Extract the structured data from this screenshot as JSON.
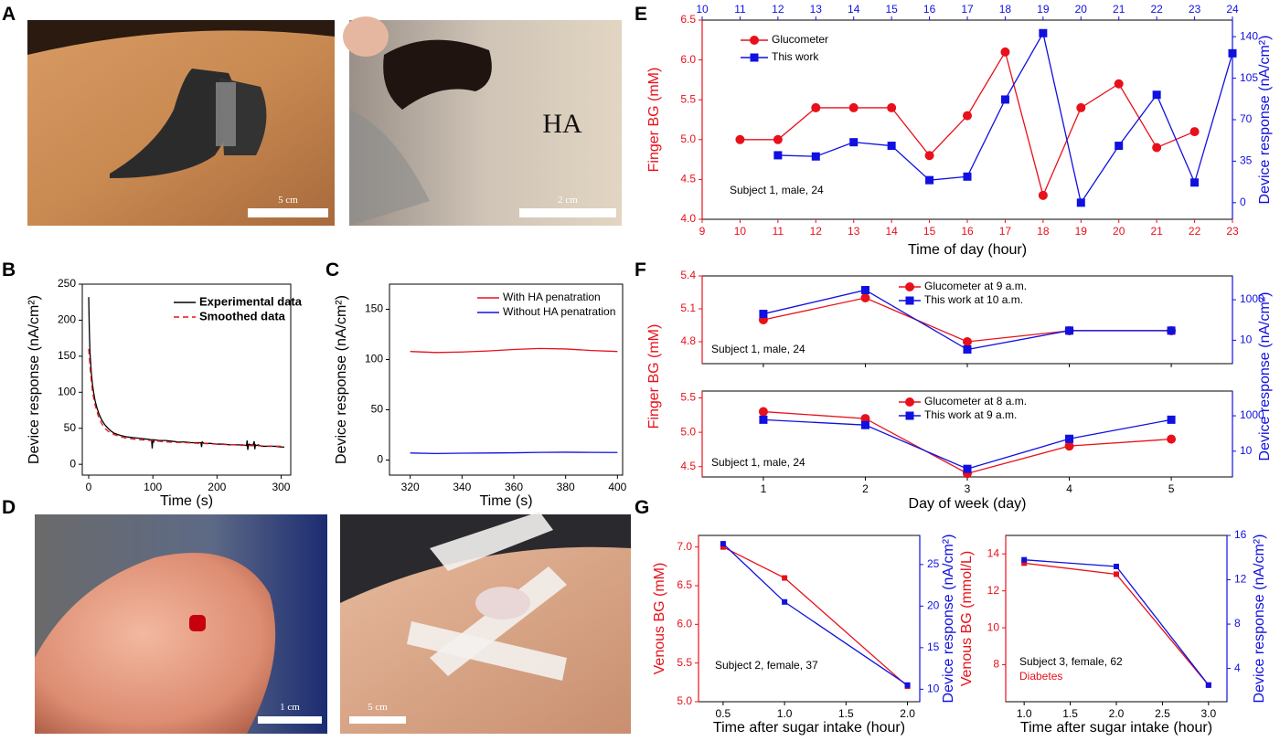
{
  "panels": {
    "A": "A",
    "B": "B",
    "C": "C",
    "D": "D",
    "E": "E",
    "F": "F",
    "G": "G"
  },
  "photos": {
    "a_left_scale": "5 cm",
    "a_right_scale": "2 cm",
    "a_right_label": "HA",
    "d_left_scale": "1 cm",
    "d_right_scale": "5 cm"
  },
  "colors": {
    "red": "#e8101a",
    "blue": "#1010e0",
    "black": "#000000"
  },
  "chart_data": [
    {
      "id": "B",
      "type": "line",
      "xlabel": "Time (s)",
      "ylabel": "Device response (nA/cm²)",
      "xlim": [
        -10,
        315
      ],
      "ylim": [
        -15,
        250
      ],
      "xticks": [
        0,
        100,
        200,
        300
      ],
      "yticks": [
        0,
        50,
        100,
        150,
        200,
        250
      ],
      "legend_position": "top-right",
      "series": [
        {
          "name": "Experimental data",
          "color": "#000000",
          "style": "solid",
          "x": [
            0,
            1,
            2,
            4,
            6,
            8,
            10,
            13,
            16,
            20,
            25,
            30,
            35,
            40,
            50,
            60,
            70,
            80,
            90,
            98,
            99,
            100,
            101,
            102,
            110,
            120,
            130,
            140,
            150,
            160,
            170,
            175,
            176,
            177,
            180,
            190,
            200,
            210,
            220,
            230,
            240,
            246,
            247,
            248,
            249,
            250,
            252,
            254,
            256,
            258,
            259,
            260,
            262,
            264,
            270,
            280,
            290,
            300,
            305
          ],
          "y": [
            232,
            185,
            155,
            128,
            110,
            98,
            88,
            78,
            70,
            62,
            55,
            50,
            46,
            43,
            40,
            38,
            37,
            36,
            35,
            34,
            22,
            35,
            30,
            34,
            33,
            33,
            32,
            31,
            31,
            30,
            30,
            30,
            24,
            31,
            29,
            29,
            28,
            28,
            27,
            27,
            27,
            26,
            33,
            20,
            27,
            28,
            27,
            27,
            26,
            32,
            21,
            27,
            26,
            27,
            25,
            25,
            25,
            24,
            24
          ]
        },
        {
          "name": "Smoothed data",
          "color": "#e8101a",
          "style": "dashed",
          "x": [
            0,
            3,
            6,
            10,
            15,
            20,
            25,
            30,
            40,
            50,
            60,
            80,
            100,
            120,
            150,
            200,
            250,
            300
          ],
          "y": [
            160,
            125,
            100,
            82,
            67,
            57,
            50,
            46,
            41,
            38,
            36,
            34,
            33,
            31,
            30,
            28,
            26,
            25
          ]
        }
      ]
    },
    {
      "id": "C",
      "type": "line",
      "xlabel": "Time (s)",
      "ylabel": "Device response (nA/cm²)",
      "xlim": [
        312,
        402
      ],
      "ylim": [
        -15,
        175
      ],
      "xticks": [
        320,
        340,
        360,
        380,
        400
      ],
      "yticks": [
        0,
        50,
        100,
        150
      ],
      "legend_position": "top-right",
      "series": [
        {
          "name": "With HA penatration",
          "color": "#e8101a",
          "x": [
            320,
            330,
            340,
            350,
            360,
            370,
            380,
            390,
            400
          ],
          "y": [
            108,
            107,
            107.5,
            108.5,
            110,
            111,
            110.5,
            109,
            108
          ]
        },
        {
          "name": "Without HA penatration",
          "color": "#1010e0",
          "x": [
            320,
            330,
            340,
            350,
            360,
            370,
            380,
            390,
            400
          ],
          "y": [
            7,
            6.5,
            6.8,
            7,
            7.2,
            7.6,
            7.8,
            7.6,
            7.5
          ]
        }
      ]
    },
    {
      "id": "E",
      "type": "line",
      "xlabel": "Time of day (hour)",
      "ylabel": "Finger BG (mM)",
      "y2label": "Device response (nA/cm²)",
      "xlim": [
        9,
        23
      ],
      "x2lim": [
        10,
        24
      ],
      "ylim": [
        4.0,
        6.5
      ],
      "y2lim": [
        -14,
        154
      ],
      "xticks": [
        9,
        10,
        11,
        12,
        13,
        14,
        15,
        16,
        17,
        18,
        19,
        20,
        21,
        22,
        23
      ],
      "x2ticks": [
        10,
        11,
        12,
        13,
        14,
        15,
        16,
        17,
        18,
        19,
        20,
        21,
        22,
        23,
        24
      ],
      "yticks": [
        "4.0",
        "4.5",
        "5.0",
        "5.5",
        "6.0",
        "6.5"
      ],
      "y2ticks": [
        0,
        35,
        70,
        105,
        140
      ],
      "annotation": "Subject 1, male, 24",
      "legend_position": "top-left",
      "series": [
        {
          "name": "Glucometer",
          "color": "#e8101a",
          "marker": "circle",
          "axis": "left",
          "x": [
            10,
            11,
            12,
            13,
            14,
            15,
            16,
            17,
            18,
            19,
            20,
            21,
            22
          ],
          "y": [
            5.0,
            5.0,
            5.4,
            5.4,
            5.4,
            4.8,
            5.3,
            6.1,
            4.3,
            5.4,
            5.7,
            4.9,
            5.1
          ]
        },
        {
          "name": "This work",
          "color": "#1010e0",
          "marker": "square",
          "axis": "right",
          "x": [
            11,
            12,
            13,
            14,
            15,
            16,
            17,
            18,
            19,
            20,
            21,
            22,
            23
          ],
          "y": [
            40,
            39,
            51,
            48,
            19,
            22,
            87,
            143,
            0,
            48,
            91,
            17,
            126
          ]
        }
      ]
    },
    {
      "id": "F1",
      "type": "line",
      "ylabel": "Finger BG (mM)",
      "y2label": "Device response (nA/cm²)",
      "xlim": [
        0.4,
        5.6
      ],
      "ylim": [
        4.6,
        5.4
      ],
      "y2scale": "log",
      "y2lim": [
        0.7,
        15000
      ],
      "yticks": [
        "4.8",
        "5.1",
        "5.4"
      ],
      "y2ticks": [
        10,
        1000
      ],
      "annotation": "Subject 1, male, 24",
      "legend_position": "top-center",
      "series": [
        {
          "name": "Glucometer at 9 a.m.",
          "color": "#e8101a",
          "marker": "circle",
          "axis": "left",
          "x": [
            1,
            2,
            3,
            4,
            5
          ],
          "y": [
            5.0,
            5.2,
            4.8,
            4.9,
            4.9
          ]
        },
        {
          "name": "This work at 10 a.m.",
          "color": "#1010e0",
          "marker": "square",
          "axis": "right",
          "x": [
            1,
            2,
            3,
            4,
            5
          ],
          "y": [
            200,
            3000,
            3.5,
            30,
            30
          ]
        }
      ]
    },
    {
      "id": "F2",
      "type": "line",
      "xlabel": "Day of week (day)",
      "ylabel": "Finger BG (mM)",
      "y2label": "Device response (nA/cm²)",
      "xlim": [
        0.4,
        5.6
      ],
      "ylim": [
        4.35,
        5.6
      ],
      "y2scale": "log",
      "y2lim": [
        0.35,
        25000
      ],
      "xticks": [
        1,
        2,
        3,
        4,
        5
      ],
      "yticks": [
        "4.5",
        "5.0",
        "5.5"
      ],
      "y2ticks": [
        10,
        1000
      ],
      "annotation": "Subject 1, male, 24",
      "legend_position": "top-center",
      "series": [
        {
          "name": "Glucometer at 8 a.m.",
          "color": "#e8101a",
          "marker": "circle",
          "axis": "left",
          "x": [
            1,
            2,
            3,
            4,
            5
          ],
          "y": [
            5.3,
            5.2,
            4.4,
            4.8,
            4.9
          ]
        },
        {
          "name": "This work at 9 a.m.",
          "color": "#1010e0",
          "marker": "square",
          "axis": "right",
          "x": [
            1,
            2,
            3,
            4,
            5
          ],
          "y": [
            600,
            300,
            1,
            50,
            600
          ]
        }
      ]
    },
    {
      "id": "G1",
      "type": "line",
      "xlabel": "Time after sugar intake (hour)",
      "ylabel": "Venous BG (mM)",
      "y2label": "Device response (nA/cm²)",
      "xlim": [
        0.3,
        2.1
      ],
      "ylim": [
        5.0,
        7.15
      ],
      "y2lim": [
        8.5,
        28.5
      ],
      "xticks": [
        "0.5",
        "1.0",
        "1.5",
        "2.0"
      ],
      "yticks": [
        "5.0",
        "5.5",
        "6.0",
        "6.5",
        "7.0"
      ],
      "y2ticks": [
        10,
        15,
        20,
        25
      ],
      "annotation": "Subject 2, female, 37",
      "series": [
        {
          "color": "#e8101a",
          "marker": "square",
          "axis": "left",
          "x": [
            0.5,
            1.0,
            2.0
          ],
          "y": [
            7.0,
            6.6,
            5.2
          ]
        },
        {
          "color": "#1010e0",
          "marker": "square",
          "axis": "right",
          "x": [
            0.5,
            1.0,
            2.0
          ],
          "y": [
            27.5,
            20.5,
            10.5
          ]
        }
      ]
    },
    {
      "id": "G2",
      "type": "line",
      "xlabel": "Time after sugar intake (hour)",
      "ylabel": "Venous BG (mmol/L)",
      "y2label": "Device response (nA/cm²)",
      "xlim": [
        0.8,
        3.2
      ],
      "ylim": [
        6,
        15
      ],
      "y2lim": [
        1,
        16
      ],
      "xticks": [
        "1.0",
        "1.5",
        "2.0",
        "2.5",
        "3.0"
      ],
      "yticks": [
        8,
        10,
        12,
        14
      ],
      "y2ticks": [
        4,
        8,
        12,
        16
      ],
      "annotation": "Subject 3, female, 62",
      "annotation2": "Diabetes",
      "series": [
        {
          "color": "#e8101a",
          "marker": "square",
          "axis": "left",
          "x": [
            1,
            2,
            3
          ],
          "y": [
            13.5,
            12.9,
            6.9
          ]
        },
        {
          "color": "#1010e0",
          "marker": "square",
          "axis": "right",
          "x": [
            1,
            2,
            3
          ],
          "y": [
            13.8,
            13.2,
            2.5
          ]
        }
      ]
    }
  ]
}
